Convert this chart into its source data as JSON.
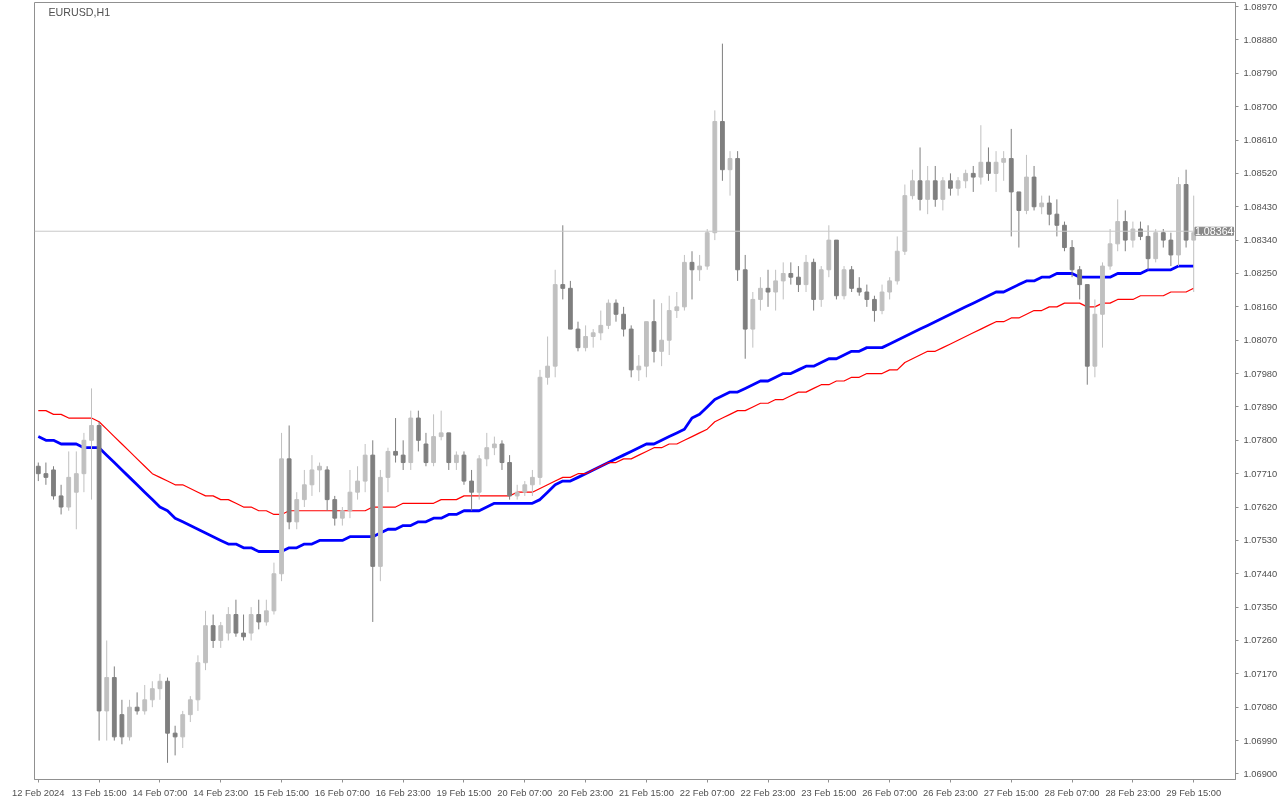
{
  "chart_data": {
    "type": "candlestick",
    "title": "EURUSD,H1",
    "categories": [
      "12 Feb 2024",
      null,
      null,
      null,
      null,
      null,
      null,
      null,
      "13 Feb 15:00",
      null,
      null,
      null,
      null,
      null,
      null,
      null,
      "14 Feb 07:00",
      null,
      null,
      null,
      null,
      null,
      null,
      null,
      "14 Feb 23:00",
      null,
      null,
      null,
      null,
      null,
      null,
      null,
      "15 Feb 15:00",
      null,
      null,
      null,
      null,
      null,
      null,
      null,
      "16 Feb 07:00",
      null,
      null,
      null,
      null,
      null,
      null,
      null,
      "16 Feb 23:00",
      null,
      null,
      null,
      null,
      null,
      null,
      null,
      "19 Feb 15:00",
      null,
      null,
      null,
      null,
      null,
      null,
      null,
      "20 Feb 07:00",
      null,
      null,
      null,
      null,
      null,
      null,
      null,
      "20 Feb 23:00",
      null,
      null,
      null,
      null,
      null,
      null,
      null,
      "21 Feb 15:00",
      null,
      null,
      null,
      null,
      null,
      null,
      null,
      "22 Feb 07:00",
      null,
      null,
      null,
      null,
      null,
      null,
      null,
      "22 Feb 23:00",
      null,
      null,
      null,
      null,
      null,
      null,
      null,
      "23 Feb 15:00",
      null,
      null,
      null,
      null,
      null,
      null,
      null,
      "26 Feb 07:00",
      null,
      null,
      null,
      null,
      null,
      null,
      null,
      "26 Feb 23:00",
      null,
      null,
      null,
      null,
      null,
      null,
      null,
      "27 Feb 15:00",
      null,
      null,
      null,
      null,
      null,
      null,
      null,
      "28 Feb 07:00",
      null,
      null,
      null,
      null,
      null,
      null,
      null,
      "28 Feb 23:00",
      null,
      null,
      null,
      null,
      null,
      null,
      null,
      "29 Feb 15:00"
    ],
    "ohlc": [
      [
        1.0773,
        1.0774,
        1.0769,
        1.0771
      ],
      [
        1.0771,
        1.0774,
        1.0768,
        1.077
      ],
      [
        1.0772,
        1.0773,
        1.0764,
        1.0765
      ],
      [
        1.0765,
        1.0768,
        1.076,
        1.0762
      ],
      [
        1.0762,
        1.0777,
        1.0761,
        1.077
      ],
      [
        1.0766,
        1.0777,
        1.0756,
        1.0771
      ],
      [
        1.0771,
        1.0782,
        1.0766,
        1.078
      ],
      [
        1.078,
        1.0794,
        1.0764,
        1.0784
      ],
      [
        1.0784,
        1.0785,
        1.0699,
        1.0707
      ],
      [
        1.0707,
        1.0726,
        1.0699,
        1.0716
      ],
      [
        1.0716,
        1.0719,
        1.0699,
        1.07
      ],
      [
        1.0706,
        1.071,
        1.0698,
        1.07
      ],
      [
        1.07,
        1.071,
        1.0699,
        1.0708
      ],
      [
        1.0708,
        1.0712,
        1.0706,
        1.0707
      ],
      [
        1.0707,
        1.0714,
        1.0706,
        1.071
      ],
      [
        1.071,
        1.0715,
        1.0708,
        1.0713
      ],
      [
        1.0713,
        1.0717,
        1.071,
        1.0715
      ],
      [
        1.0715,
        1.0716,
        1.0693,
        1.0701
      ],
      [
        1.0701,
        1.0703,
        1.0695,
        1.07
      ],
      [
        1.07,
        1.0707,
        1.0697,
        1.0706
      ],
      [
        1.0706,
        1.0711,
        1.0704,
        1.071
      ],
      [
        1.071,
        1.0722,
        1.0707,
        1.072
      ],
      [
        1.072,
        1.0734,
        1.0718,
        1.073
      ],
      [
        1.073,
        1.0733,
        1.0724,
        1.0726
      ],
      [
        1.0726,
        1.0731,
        1.0724,
        1.073
      ],
      [
        1.0728,
        1.0735,
        1.0726,
        1.0733
      ],
      [
        1.0733,
        1.0737,
        1.0727,
        1.0728
      ],
      [
        1.0728,
        1.0733,
        1.0726,
        1.0727
      ],
      [
        1.0728,
        1.0735,
        1.0726,
        1.0733
      ],
      [
        1.0733,
        1.0737,
        1.0729,
        1.0731
      ],
      [
        1.0731,
        1.0737,
        1.073,
        1.0734
      ],
      [
        1.0734,
        1.0747,
        1.0733,
        1.0744
      ],
      [
        1.0744,
        1.0782,
        1.0742,
        1.0775
      ],
      [
        1.0775,
        1.0784,
        1.0756,
        1.0758
      ],
      [
        1.0758,
        1.0766,
        1.0756,
        1.0764
      ],
      [
        1.0764,
        1.0772,
        1.0762,
        1.0768
      ],
      [
        1.0768,
        1.0776,
        1.0765,
        1.0772
      ],
      [
        1.0772,
        1.0774,
        1.0766,
        1.0773
      ],
      [
        1.0772,
        1.0773,
        1.0761,
        1.0764
      ],
      [
        1.0764,
        1.0765,
        1.0757,
        1.0759
      ],
      [
        1.0759,
        1.0762,
        1.0757,
        1.0761
      ],
      [
        1.0761,
        1.0772,
        1.0759,
        1.0766
      ],
      [
        1.0766,
        1.0773,
        1.0764,
        1.0769
      ],
      [
        1.0769,
        1.0779,
        1.0766,
        1.0776
      ],
      [
        1.0776,
        1.078,
        1.0731,
        1.0746
      ],
      [
        1.0746,
        1.0772,
        1.0742,
        1.077
      ],
      [
        1.077,
        1.0778,
        1.0766,
        1.0777
      ],
      [
        1.0777,
        1.0786,
        1.0774,
        1.0776
      ],
      [
        1.0776,
        1.078,
        1.0772,
        1.0774
      ],
      [
        1.0774,
        1.0788,
        1.0772,
        1.0786
      ],
      [
        1.0786,
        1.0788,
        1.0777,
        1.078
      ],
      [
        1.0779,
        1.0782,
        1.0773,
        1.0774
      ],
      [
        1.0774,
        1.0787,
        1.0773,
        1.0781
      ],
      [
        1.0781,
        1.0788,
        1.078,
        1.0782
      ],
      [
        1.0782,
        1.0782,
        1.0772,
        1.0774
      ],
      [
        1.0774,
        1.0777,
        1.0772,
        1.0776
      ],
      [
        1.0776,
        1.0777,
        1.0768,
        1.0769
      ],
      [
        1.0769,
        1.0772,
        1.0761,
        1.0766
      ],
      [
        1.0766,
        1.0776,
        1.0764,
        1.0775
      ],
      [
        1.0775,
        1.0782,
        1.0773,
        1.0778
      ],
      [
        1.0778,
        1.0781,
        1.0776,
        1.0779
      ],
      [
        1.0779,
        1.078,
        1.0772,
        1.0774
      ],
      [
        1.0774,
        1.0776,
        1.0764,
        1.0765
      ],
      [
        1.0765,
        1.0768,
        1.0764,
        1.0766
      ],
      [
        1.0766,
        1.0769,
        1.0765,
        1.0768
      ],
      [
        1.0768,
        1.0772,
        1.0765,
        1.077
      ],
      [
        1.077,
        1.0799,
        1.0768,
        1.0797
      ],
      [
        1.0797,
        1.0808,
        1.0795,
        1.08
      ],
      [
        1.08,
        1.0826,
        1.0797,
        1.0822
      ],
      [
        1.0822,
        1.0838,
        1.0818,
        1.0821
      ],
      [
        1.0821,
        1.0823,
        1.081,
        1.081
      ],
      [
        1.081,
        1.0812,
        1.0804,
        1.0805
      ],
      [
        1.0805,
        1.0811,
        1.0804,
        1.0808
      ],
      [
        1.0808,
        1.081,
        1.0805,
        1.0809
      ],
      [
        1.0809,
        1.0815,
        1.0807,
        1.0811
      ],
      [
        1.0811,
        1.0818,
        1.081,
        1.0817
      ],
      [
        1.0817,
        1.0818,
        1.0812,
        1.0814
      ],
      [
        1.0814,
        1.0816,
        1.0808,
        1.081
      ],
      [
        1.081,
        1.0811,
        1.0797,
        1.0799
      ],
      [
        1.0799,
        1.0803,
        1.0796,
        1.08
      ],
      [
        1.08,
        1.0812,
        1.0797,
        1.0812
      ],
      [
        1.0812,
        1.0818,
        1.0801,
        1.0804
      ],
      [
        1.0804,
        1.0817,
        1.08,
        1.0807
      ],
      [
        1.0807,
        1.0819,
        1.0803,
        1.0815
      ],
      [
        1.0815,
        1.082,
        1.0813,
        1.0816
      ],
      [
        1.0816,
        1.083,
        1.0815,
        1.0828
      ],
      [
        1.0828,
        1.0831,
        1.0818,
        1.0826
      ],
      [
        1.0826,
        1.083,
        1.0823,
        1.0827
      ],
      [
        1.0827,
        1.0837,
        1.0826,
        1.0836
      ],
      [
        1.0836,
        1.0869,
        1.0834,
        1.0866
      ],
      [
        1.0866,
        1.0887,
        1.085,
        1.0853
      ],
      [
        1.0853,
        1.0858,
        1.0846,
        1.0856
      ],
      [
        1.0856,
        1.0858,
        1.0823,
        1.0826
      ],
      [
        1.0826,
        1.083,
        1.0802,
        1.081
      ],
      [
        1.081,
        1.082,
        1.0805,
        1.0818
      ],
      [
        1.0818,
        1.0824,
        1.0815,
        1.0821
      ],
      [
        1.0821,
        1.0826,
        1.0816,
        1.082
      ],
      [
        1.082,
        1.0826,
        1.0815,
        1.0823
      ],
      [
        1.0823,
        1.0828,
        1.0818,
        1.0825
      ],
      [
        1.0825,
        1.0828,
        1.0822,
        1.0824
      ],
      [
        1.0824,
        1.0827,
        1.082,
        1.0822
      ],
      [
        1.0822,
        1.083,
        1.082,
        1.0828
      ],
      [
        1.0828,
        1.0829,
        1.0815,
        1.0818
      ],
      [
        1.0818,
        1.0827,
        1.0816,
        1.0826
      ],
      [
        1.0826,
        1.0838,
        1.0824,
        1.0834
      ],
      [
        1.0834,
        1.0834,
        1.0818,
        1.0819
      ],
      [
        1.0819,
        1.0827,
        1.0818,
        1.0826
      ],
      [
        1.0826,
        1.0827,
        1.082,
        1.0821
      ],
      [
        1.0821,
        1.0824,
        1.0819,
        1.082
      ],
      [
        1.082,
        1.0822,
        1.0816,
        1.0818
      ],
      [
        1.0818,
        1.0819,
        1.0812,
        1.0815
      ],
      [
        1.0815,
        1.0822,
        1.0814,
        1.082
      ],
      [
        1.082,
        1.0824,
        1.0818,
        1.0823
      ],
      [
        1.0823,
        1.0835,
        1.0822,
        1.0831
      ],
      [
        1.0831,
        1.0849,
        1.083,
        1.0846
      ],
      [
        1.0846,
        1.0853,
        1.0845,
        1.085
      ],
      [
        1.085,
        1.0859,
        1.0842,
        1.0845
      ],
      [
        1.0845,
        1.0854,
        1.0841,
        1.085
      ],
      [
        1.085,
        1.0854,
        1.0843,
        1.0845
      ],
      [
        1.0845,
        1.0851,
        1.0842,
        1.085
      ],
      [
        1.085,
        1.0852,
        1.0846,
        1.0848
      ],
      [
        1.0848,
        1.0851,
        1.0846,
        1.085
      ],
      [
        1.085,
        1.0853,
        1.0848,
        1.0852
      ],
      [
        1.0852,
        1.0854,
        1.0847,
        1.0851
      ],
      [
        1.0851,
        1.0865,
        1.0849,
        1.0855
      ],
      [
        1.0855,
        1.0859,
        1.085,
        1.0852
      ],
      [
        1.0852,
        1.0858,
        1.0847,
        1.0855
      ],
      [
        1.0855,
        1.0858,
        1.085,
        1.0856
      ],
      [
        1.0856,
        1.0864,
        1.0835,
        1.0847
      ],
      [
        1.0847,
        1.0847,
        1.0832,
        1.0842
      ],
      [
        1.0842,
        1.0857,
        1.0841,
        1.0851
      ],
      [
        1.0851,
        1.0854,
        1.0842,
        1.0843
      ],
      [
        1.0843,
        1.0846,
        1.0841,
        1.0844
      ],
      [
        1.0844,
        1.0846,
        1.0838,
        1.0841
      ],
      [
        1.0841,
        1.0845,
        1.0835,
        1.0838
      ],
      [
        1.0838,
        1.0839,
        1.0831,
        1.0832
      ],
      [
        1.0832,
        1.0834,
        1.0824,
        1.0826
      ],
      [
        1.0826,
        1.0827,
        1.0818,
        1.0822
      ],
      [
        1.0822,
        1.0822,
        1.0795,
        1.08
      ],
      [
        1.08,
        1.0818,
        1.0797,
        1.0814
      ],
      [
        1.0814,
        1.0828,
        1.0805,
        1.0827
      ],
      [
        1.0827,
        1.0837,
        1.0826,
        1.0833
      ],
      [
        1.0833,
        1.0845,
        1.0831,
        1.0839
      ],
      [
        1.0839,
        1.0842,
        1.0831,
        1.0834
      ],
      [
        1.0834,
        1.0839,
        1.0832,
        1.0837
      ],
      [
        1.0837,
        1.0839,
        1.0834,
        1.0835
      ],
      [
        1.0835,
        1.0838,
        1.0826,
        1.0829
      ],
      [
        1.0829,
        1.0837,
        1.0828,
        1.0836
      ],
      [
        1.0836,
        1.0837,
        1.0832,
        1.0834
      ],
      [
        1.0834,
        1.0836,
        1.0827,
        1.083
      ],
      [
        1.083,
        1.0851,
        1.0827,
        1.0849
      ],
      [
        1.0849,
        1.0853,
        1.0832,
        1.0834
      ],
      [
        1.0834,
        1.0846,
        1.082,
        1.0836
      ]
    ],
    "colors": [
      "#7f7f7f",
      "#7f7f7f",
      "#7f7f7f",
      "#7f7f7f",
      "#c0c0c0",
      "#c0c0c0",
      "#c0c0c0",
      "#c0c0c0",
      "#7f7f7f",
      "#c0c0c0",
      "#7f7f7f",
      "#7f7f7f",
      "#c0c0c0",
      "#7f7f7f",
      "#c0c0c0",
      "#c0c0c0",
      "#c0c0c0",
      "#7f7f7f",
      "#7f7f7f",
      "#c0c0c0",
      "#c0c0c0",
      "#c0c0c0",
      "#c0c0c0",
      "#7f7f7f",
      "#c0c0c0",
      "#c0c0c0",
      "#7f7f7f",
      "#7f7f7f",
      "#c0c0c0",
      "#7f7f7f",
      "#c0c0c0",
      "#c0c0c0",
      "#c0c0c0",
      "#7f7f7f",
      "#c0c0c0",
      "#c0c0c0",
      "#c0c0c0",
      "#c0c0c0",
      "#7f7f7f",
      "#7f7f7f",
      "#c0c0c0",
      "#c0c0c0",
      "#c0c0c0",
      "#c0c0c0",
      "#7f7f7f",
      "#c0c0c0",
      "#c0c0c0",
      "#7f7f7f",
      "#7f7f7f",
      "#c0c0c0",
      "#7f7f7f",
      "#7f7f7f",
      "#c0c0c0",
      "#c0c0c0",
      "#7f7f7f",
      "#c0c0c0",
      "#7f7f7f",
      "#7f7f7f",
      "#c0c0c0",
      "#c0c0c0",
      "#c0c0c0",
      "#7f7f7f",
      "#7f7f7f",
      "#c0c0c0",
      "#c0c0c0",
      "#c0c0c0",
      "#c0c0c0",
      "#c0c0c0",
      "#c0c0c0",
      "#7f7f7f",
      "#7f7f7f",
      "#7f7f7f",
      "#c0c0c0",
      "#c0c0c0",
      "#c0c0c0",
      "#c0c0c0",
      "#7f7f7f",
      "#7f7f7f",
      "#7f7f7f",
      "#c0c0c0",
      "#c0c0c0",
      "#7f7f7f",
      "#c0c0c0",
      "#c0c0c0",
      "#c0c0c0",
      "#c0c0c0",
      "#7f7f7f",
      "#c0c0c0",
      "#c0c0c0",
      "#c0c0c0",
      "#7f7f7f",
      "#c0c0c0",
      "#7f7f7f",
      "#7f7f7f",
      "#c0c0c0",
      "#c0c0c0",
      "#7f7f7f",
      "#c0c0c0",
      "#c0c0c0",
      "#7f7f7f",
      "#7f7f7f",
      "#c0c0c0",
      "#7f7f7f",
      "#c0c0c0",
      "#c0c0c0",
      "#7f7f7f",
      "#c0c0c0",
      "#7f7f7f",
      "#7f7f7f",
      "#7f7f7f",
      "#7f7f7f",
      "#c0c0c0",
      "#c0c0c0",
      "#c0c0c0",
      "#c0c0c0",
      "#c0c0c0",
      "#7f7f7f",
      "#c0c0c0",
      "#7f7f7f",
      "#c0c0c0",
      "#7f7f7f",
      "#c0c0c0",
      "#c0c0c0",
      "#7f7f7f",
      "#c0c0c0",
      "#7f7f7f",
      "#c0c0c0",
      "#c0c0c0",
      "#7f7f7f",
      "#7f7f7f",
      "#c0c0c0",
      "#7f7f7f",
      "#c0c0c0",
      "#7f7f7f",
      "#7f7f7f",
      "#7f7f7f",
      "#7f7f7f",
      "#7f7f7f",
      "#7f7f7f",
      "#c0c0c0",
      "#c0c0c0",
      "#c0c0c0",
      "#c0c0c0",
      "#7f7f7f",
      "#c0c0c0",
      "#7f7f7f",
      "#7f7f7f",
      "#c0c0c0",
      "#7f7f7f",
      "#7f7f7f",
      "#c0c0c0",
      "#7f7f7f",
      "#c0c0c0"
    ],
    "series": [
      {
        "type": "line",
        "color": "#0000ff",
        "values": [
          1.0781,
          1.078,
          1.078,
          1.0779,
          1.0779,
          1.0779,
          1.0778,
          1.0778,
          1.0778,
          1.0776,
          1.0774,
          1.0772,
          1.077,
          1.0768,
          1.0766,
          1.0764,
          1.0762,
          1.0761,
          1.0759,
          1.0758,
          1.0757,
          1.0756,
          1.0755,
          1.0754,
          1.0753,
          1.0752,
          1.0752,
          1.0751,
          1.0751,
          1.075,
          1.075,
          1.075,
          1.075,
          1.0751,
          1.0751,
          1.0752,
          1.0752,
          1.0753,
          1.0753,
          1.0753,
          1.0753,
          1.0754,
          1.0754,
          1.0754,
          1.0754,
          1.0755,
          1.0756,
          1.0756,
          1.0757,
          1.0757,
          1.0758,
          1.0758,
          1.0759,
          1.0759,
          1.076,
          1.076,
          1.0761,
          1.0761,
          1.0761,
          1.0762,
          1.0763,
          1.0763,
          1.0763,
          1.0763,
          1.0763,
          1.0763,
          1.0764,
          1.0766,
          1.0768,
          1.0769,
          1.0769,
          1.077,
          1.0771,
          1.0772,
          1.0773,
          1.0774,
          1.0775,
          1.0776,
          1.0777,
          1.0778,
          1.0779,
          1.0779,
          1.078,
          1.0781,
          1.0782,
          1.0783,
          1.0786,
          1.0787,
          1.0789,
          1.0791,
          1.0792,
          1.0793,
          1.0793,
          1.0794,
          1.0795,
          1.0796,
          1.0796,
          1.0797,
          1.0798,
          1.0798,
          1.0799,
          1.08,
          1.08,
          1.0801,
          1.0802,
          1.0802,
          1.0803,
          1.0804,
          1.0804,
          1.0805,
          1.0805,
          1.0805,
          1.0806,
          1.0807,
          1.0808,
          1.0809,
          1.081,
          1.0811,
          1.0812,
          1.0813,
          1.0814,
          1.0815,
          1.0816,
          1.0817,
          1.0818,
          1.0819,
          1.082,
          1.082,
          1.0821,
          1.0822,
          1.0823,
          1.0823,
          1.0824,
          1.0824,
          1.0825,
          1.0825,
          1.0825,
          1.0824,
          1.0824,
          1.0824,
          1.0824,
          1.0824,
          1.0825,
          1.0825,
          1.0825,
          1.0825,
          1.0826,
          1.0826,
          1.0826,
          1.0826,
          1.0827,
          1.0827,
          1.0827
        ]
      },
      {
        "type": "line",
        "color": "#ff0000",
        "values": [
          1.0788,
          1.0788,
          1.0787,
          1.0787,
          1.0786,
          1.0786,
          1.0786,
          1.0786,
          1.0785,
          1.0783,
          1.0781,
          1.0779,
          1.0777,
          1.0775,
          1.0773,
          1.0771,
          1.077,
          1.0769,
          1.0768,
          1.0768,
          1.0767,
          1.0766,
          1.0765,
          1.0765,
          1.0764,
          1.0764,
          1.0763,
          1.0762,
          1.0762,
          1.0761,
          1.0761,
          1.076,
          1.076,
          1.0761,
          1.0761,
          1.0761,
          1.0761,
          1.0761,
          1.0761,
          1.0761,
          1.0761,
          1.0761,
          1.0761,
          1.0761,
          1.0762,
          1.0762,
          1.0762,
          1.0762,
          1.0763,
          1.0763,
          1.0763,
          1.0763,
          1.0763,
          1.0764,
          1.0764,
          1.0764,
          1.0765,
          1.0765,
          1.0765,
          1.0765,
          1.0765,
          1.0765,
          1.0765,
          1.0766,
          1.0766,
          1.0766,
          1.0767,
          1.0768,
          1.0769,
          1.077,
          1.077,
          1.0771,
          1.0771,
          1.0772,
          1.0773,
          1.0774,
          1.0774,
          1.0775,
          1.0775,
          1.0776,
          1.0777,
          1.0778,
          1.0778,
          1.0779,
          1.0779,
          1.078,
          1.0781,
          1.0782,
          1.0783,
          1.0785,
          1.0786,
          1.0787,
          1.0788,
          1.0788,
          1.0789,
          1.079,
          1.079,
          1.0791,
          1.0791,
          1.0792,
          1.0793,
          1.0793,
          1.0794,
          1.0795,
          1.0795,
          1.0796,
          1.0796,
          1.0797,
          1.0797,
          1.0798,
          1.0798,
          1.0798,
          1.0799,
          1.0799,
          1.0801,
          1.0802,
          1.0803,
          1.0804,
          1.0804,
          1.0805,
          1.0806,
          1.0807,
          1.0808,
          1.0809,
          1.081,
          1.0811,
          1.0812,
          1.0812,
          1.0813,
          1.0813,
          1.0814,
          1.0815,
          1.0815,
          1.0816,
          1.0816,
          1.0817,
          1.0817,
          1.0817,
          1.0816,
          1.0816,
          1.0817,
          1.0817,
          1.0818,
          1.0818,
          1.0818,
          1.0819,
          1.0819,
          1.0819,
          1.0819,
          1.082,
          1.082,
          1.082,
          1.0821
        ]
      }
    ],
    "ylim": [
      1.06885,
      1.08981
    ],
    "yticks": [
      {
        "value": 1.069,
        "label": "1.06900"
      },
      {
        "value": 1.0699,
        "label": "1.06990"
      },
      {
        "value": 1.0708,
        "label": "1.07080"
      },
      {
        "value": 1.0717,
        "label": "1.07170"
      },
      {
        "value": 1.0726,
        "label": "1.07260"
      },
      {
        "value": 1.0735,
        "label": "1.07350"
      },
      {
        "value": 1.0744,
        "label": "1.07440"
      },
      {
        "value": 1.0753,
        "label": "1.07530"
      },
      {
        "value": 1.0762,
        "label": "1.07620"
      },
      {
        "value": 1.0771,
        "label": "1.07710"
      },
      {
        "value": 1.078,
        "label": "1.07800"
      },
      {
        "value": 1.0789,
        "label": "1.07890"
      },
      {
        "value": 1.0798,
        "label": "1.07980"
      },
      {
        "value": 1.0807,
        "label": "1.08070"
      },
      {
        "value": 1.0816,
        "label": "1.08160"
      },
      {
        "value": 1.0825,
        "label": "1.08250"
      },
      {
        "value": 1.0834,
        "label": "1.08340"
      },
      {
        "value": 1.0843,
        "label": "1.08430"
      },
      {
        "value": 1.0852,
        "label": "1.08520"
      },
      {
        "value": 1.0861,
        "label": "1.08610"
      },
      {
        "value": 1.087,
        "label": "1.08700"
      },
      {
        "value": 1.0879,
        "label": "1.08790"
      },
      {
        "value": 1.0888,
        "label": "1.08880"
      },
      {
        "value": 1.0897,
        "label": "1.08970"
      }
    ],
    "ref_lines": [
      {
        "axis": "y",
        "value": 1.08364,
        "label": "1.08364",
        "color": "#c8c8c8"
      }
    ],
    "grid": false
  }
}
